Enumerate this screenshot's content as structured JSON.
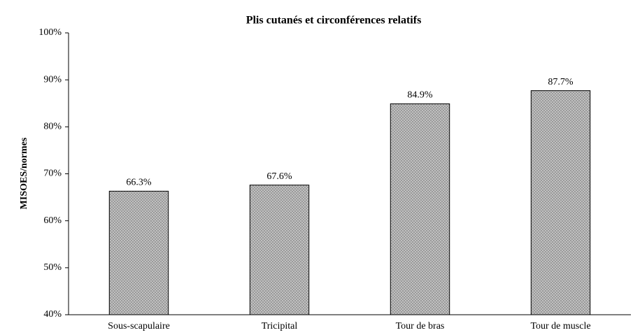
{
  "chart_data": {
    "type": "bar",
    "title": "Plis cutanés et circonférences relatifs",
    "y_label": "MISOES/normes",
    "categories": [
      "Sous-scapulaire",
      "Tricipital",
      "Tour de bras",
      "Tour de muscle"
    ],
    "values": [
      66.3,
      67.6,
      84.9,
      87.7
    ],
    "value_labels": [
      "66.3%",
      "67.6%",
      "84.9%",
      "87.7%"
    ],
    "color": "#c8c8c8",
    "ylim": [
      40,
      100
    ],
    "yticks": [
      {
        "value": 40,
        "label": "40%"
      },
      {
        "value": 50,
        "label": "50%"
      },
      {
        "value": 60,
        "label": "60%"
      },
      {
        "value": 70,
        "label": "70%"
      },
      {
        "value": 80,
        "label": "80%"
      },
      {
        "value": 90,
        "label": "90%"
      },
      {
        "value": 100,
        "label": "100%"
      }
    ],
    "grid": false
  }
}
